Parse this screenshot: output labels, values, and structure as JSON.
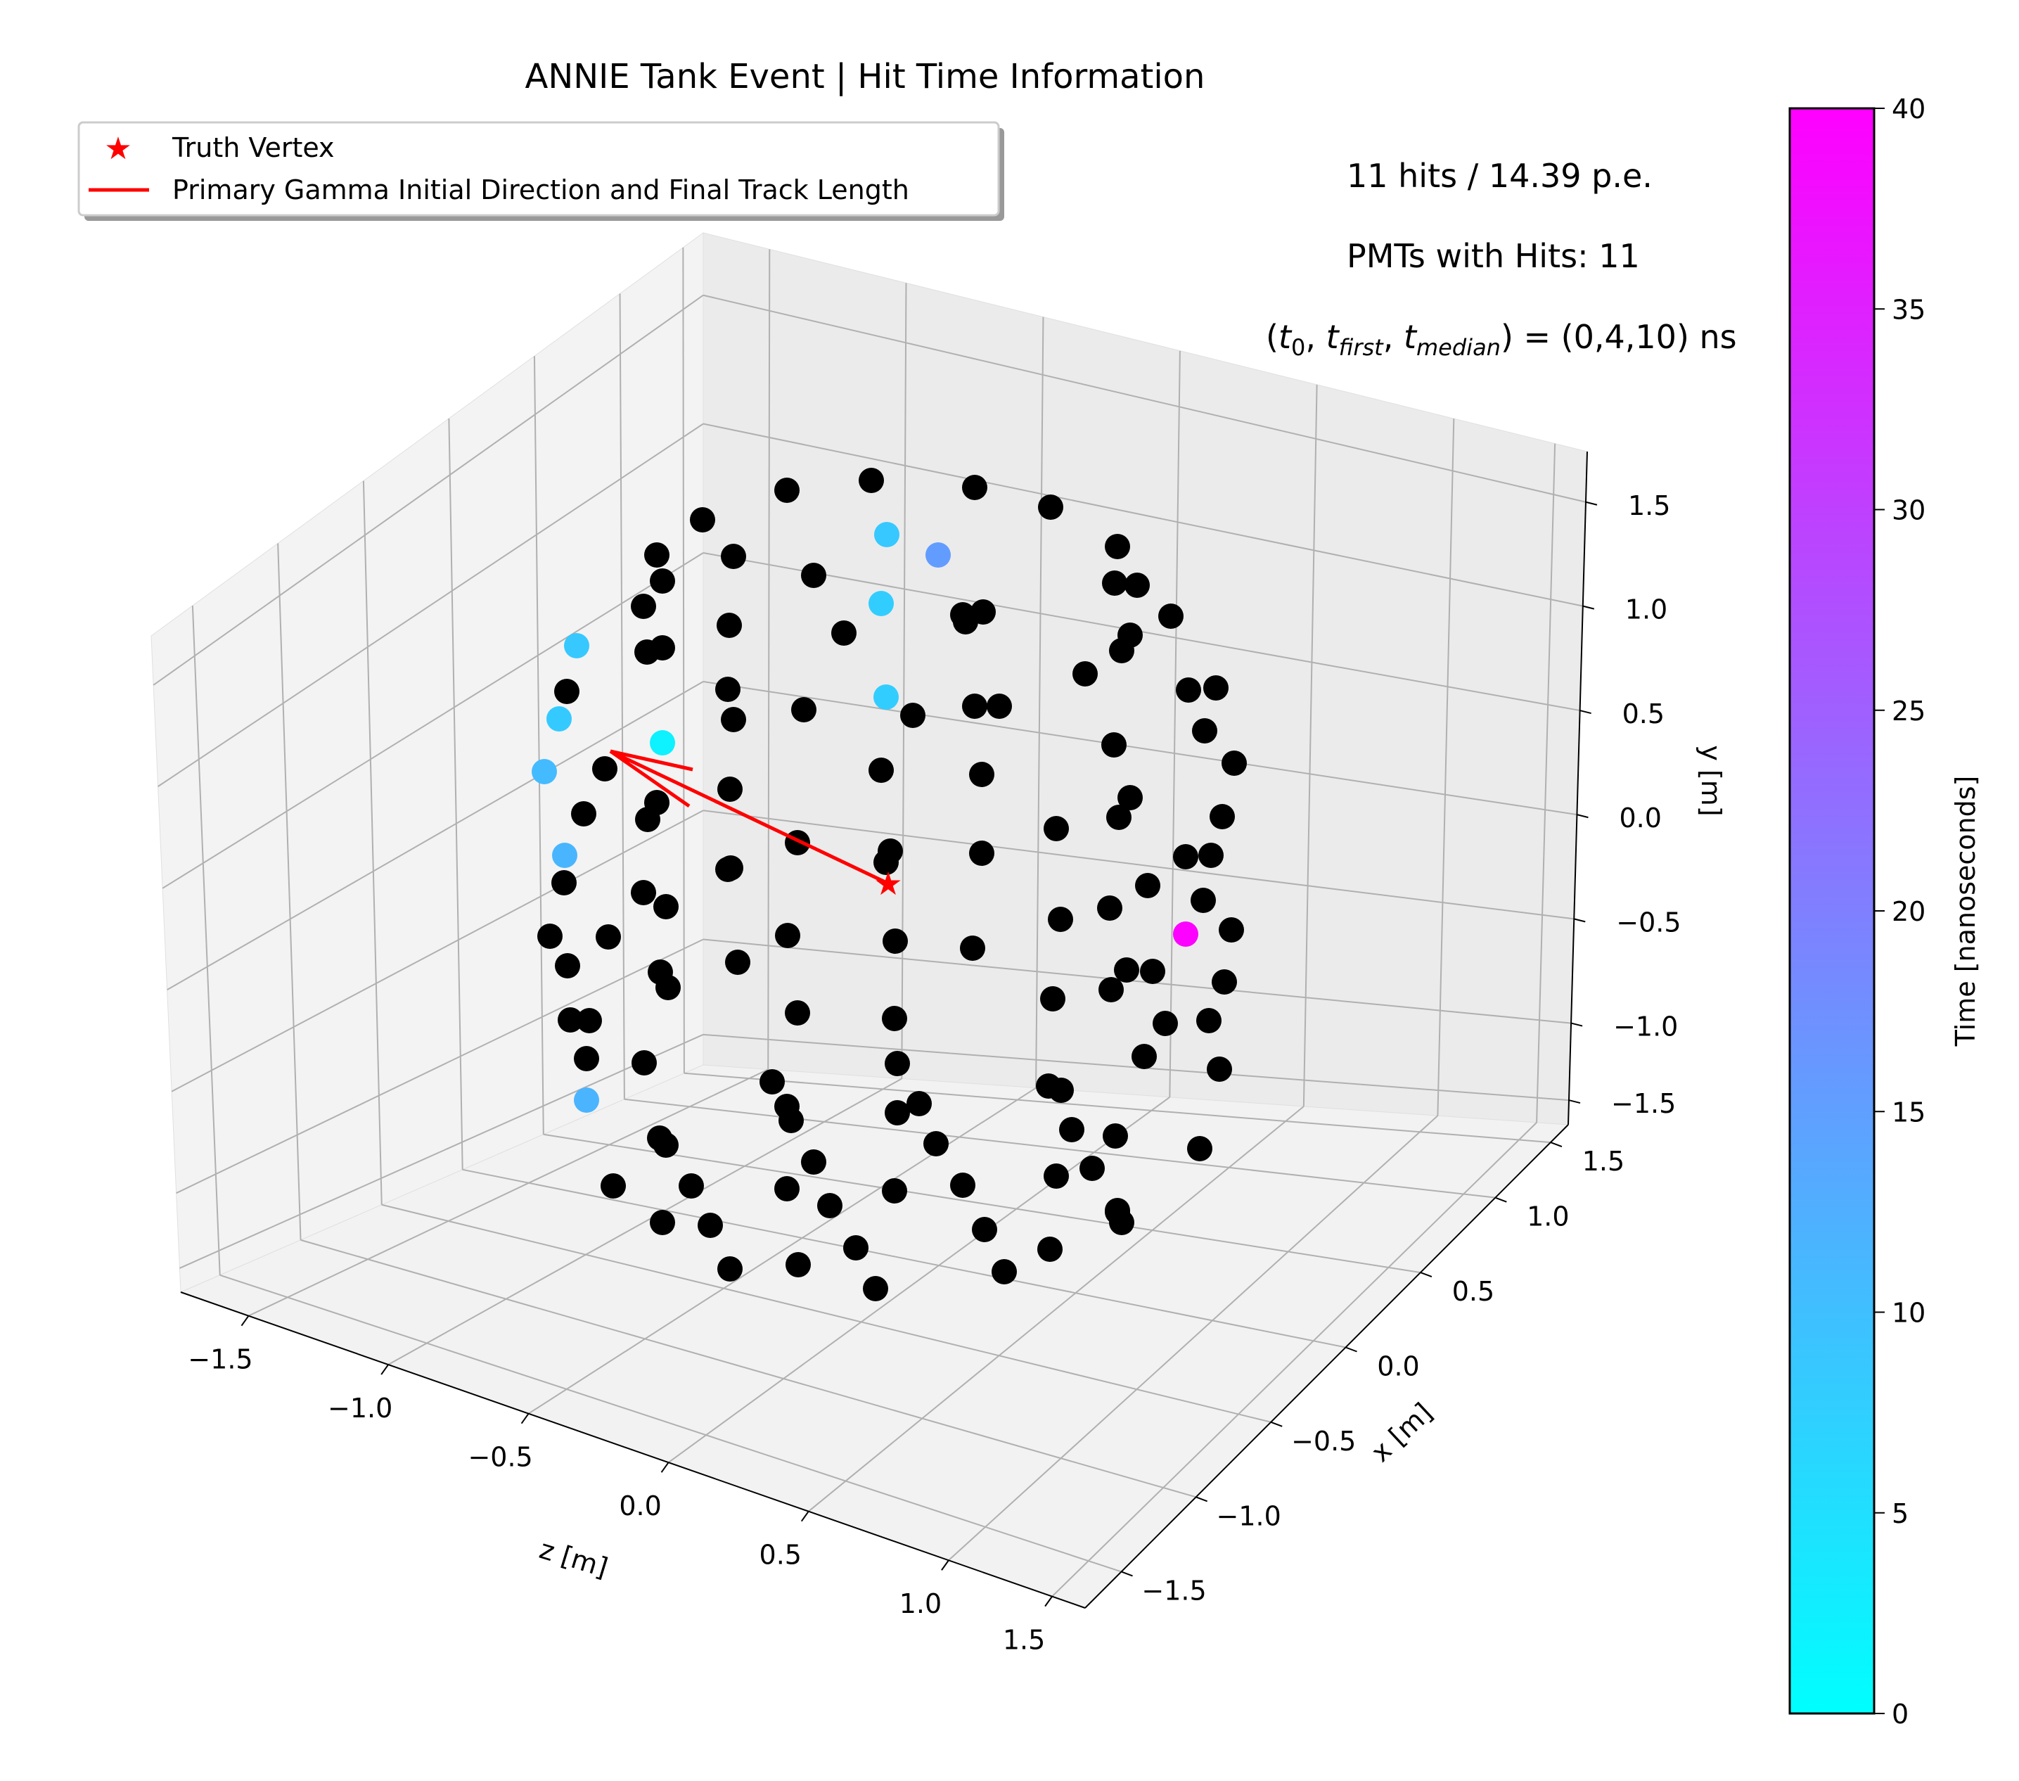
{
  "chart_data": {
    "type": "scatter",
    "title": "ANNIE Tank Event | Hit Time Information",
    "xlabel": "z [m]",
    "xlabel2": "x [m]",
    "ylabel": "y [m]",
    "annotations": {
      "hits": "11 hits / 14.39 p.e.",
      "pmts": "PMTs with Hits: 11",
      "times_prefix": "(",
      "t0": "t",
      "t0_sub": "0",
      "tfirst": "t",
      "tfirst_sub": "first",
      "tmedian": "t",
      "tmedian_sub": "median",
      "times_value": ") = (0,4,10) ns"
    },
    "legend": {
      "placement": "top-left",
      "entries": [
        "Truth Vertex",
        "Primary Gamma Initial Direction and Final Track Length"
      ]
    },
    "z_ticks": [
      "−1.5",
      "−1.0",
      "−0.5",
      "0.0",
      "0.5",
      "1.0",
      "1.5"
    ],
    "x_ticks": [
      "−1.5",
      "−1.0",
      "−0.5",
      "0.0",
      "0.5",
      "1.0",
      "1.5"
    ],
    "y_ticks": [
      "1.5",
      "1.0",
      "0.5",
      "0.0",
      "−0.5",
      "−1.0",
      "−1.5"
    ],
    "colorbar": {
      "label": "Time [nanoseconds]",
      "range": [
        0,
        40
      ],
      "ticks": [
        "0",
        "5",
        "10",
        "15",
        "20",
        "25",
        "30",
        "35",
        "40"
      ],
      "colormap": "cool"
    },
    "colors": {
      "no_hit": "#000000",
      "truth": "#ff0000",
      "grid": "#b0b0b0"
    },
    "truth_vertex": [
      1263,
      1256
    ],
    "direction_end": [
      868,
      1068
    ],
    "hit_pmts": [
      {
        "pt": [
          1261,
          760
        ],
        "time": 8.7
      },
      {
        "pt": [
          1334,
          789
        ],
        "time": 15.5
      },
      {
        "pt": [
          1253,
          858
        ],
        "time": 7.9
      },
      {
        "pt": [
          1260,
          991
        ],
        "time": 7.9
      },
      {
        "pt": [
          820,
          918
        ],
        "time": 8.6
      },
      {
        "pt": [
          795,
          1022
        ],
        "time": 8.3
      },
      {
        "pt": [
          774,
          1097
        ],
        "time": 10.6
      },
      {
        "pt": [
          942,
          1056
        ],
        "time": 2.2
      },
      {
        "pt": [
          803,
          1216
        ],
        "time": 11.6
      },
      {
        "pt": [
          834,
          1564
        ],
        "time": 11.8
      },
      {
        "pt": [
          1686,
          1328
        ],
        "time": 39.6
      }
    ],
    "no_hit_pmts": [
      [
        1119,
        697
      ],
      [
        1239,
        683
      ],
      [
        1386,
        693
      ],
      [
        1494,
        721
      ],
      [
        999,
        739
      ],
      [
        1043,
        791
      ],
      [
        1157,
        818
      ],
      [
        934,
        789
      ],
      [
        942,
        826
      ],
      [
        915,
        862
      ],
      [
        1369,
        874
      ],
      [
        1589,
        777
      ],
      [
        1585,
        829
      ],
      [
        1617,
        832
      ],
      [
        1665,
        876
      ],
      [
        1200,
        900
      ],
      [
        1373,
        884
      ],
      [
        1398,
        870
      ],
      [
        1607,
        903
      ],
      [
        1595,
        925
      ],
      [
        1037,
        889
      ],
      [
        920,
        927
      ],
      [
        942,
        921
      ],
      [
        1543,
        958
      ],
      [
        806,
        983
      ],
      [
        1690,
        981
      ],
      [
        1729,
        978
      ],
      [
        1035,
        980
      ],
      [
        1043,
        1023
      ],
      [
        1143,
        1009
      ],
      [
        1298,
        1017
      ],
      [
        1386,
        1004
      ],
      [
        1421,
        1004
      ],
      [
        1713,
        1039
      ],
      [
        1584,
        1059
      ],
      [
        1755,
        1085
      ],
      [
        860,
        1093
      ],
      [
        1038,
        1122
      ],
      [
        1253,
        1095
      ],
      [
        1396,
        1101
      ],
      [
        1607,
        1134
      ],
      [
        934,
        1141
      ],
      [
        1591,
        1162
      ],
      [
        1738,
        1161
      ],
      [
        1039,
        1234
      ],
      [
        830,
        1157
      ],
      [
        921,
        1165
      ],
      [
        1502,
        1178
      ],
      [
        1134,
        1198
      ],
      [
        1266,
        1210
      ],
      [
        1396,
        1213
      ],
      [
        1686,
        1218
      ],
      [
        1722,
        1216
      ],
      [
        1260,
        1226
      ],
      [
        1035,
        1236
      ],
      [
        1632,
        1259
      ],
      [
        802,
        1255
      ],
      [
        915,
        1269
      ],
      [
        1578,
        1291
      ],
      [
        947,
        1289
      ],
      [
        1711,
        1280
      ],
      [
        1508,
        1307
      ],
      [
        1751,
        1322
      ],
      [
        782,
        1331
      ],
      [
        1120,
        1330
      ],
      [
        1273,
        1338
      ],
      [
        1383,
        1348
      ],
      [
        1639,
        1381
      ],
      [
        865,
        1332
      ],
      [
        807,
        1373
      ],
      [
        1049,
        1368
      ],
      [
        939,
        1382
      ],
      [
        1602,
        1379
      ],
      [
        950,
        1404
      ],
      [
        1741,
        1396
      ],
      [
        1497,
        1420
      ],
      [
        1580,
        1407
      ],
      [
        1657,
        1455
      ],
      [
        811,
        1450
      ],
      [
        838,
        1451
      ],
      [
        1134,
        1440
      ],
      [
        1272,
        1448
      ],
      [
        1719,
        1451
      ],
      [
        834,
        1505
      ],
      [
        1627,
        1502
      ],
      [
        916,
        1511
      ],
      [
        1276,
        1512
      ],
      [
        1734,
        1520
      ],
      [
        1098,
        1538
      ],
      [
        1491,
        1544
      ],
      [
        1509,
        1550
      ],
      [
        1307,
        1569
      ],
      [
        1119,
        1573
      ],
      [
        1125,
        1593
      ],
      [
        1276,
        1582
      ],
      [
        1524,
        1606
      ],
      [
        1586,
        1615
      ],
      [
        938,
        1618
      ],
      [
        947,
        1628
      ],
      [
        1331,
        1626
      ],
      [
        1706,
        1633
      ],
      [
        1157,
        1652
      ],
      [
        1553,
        1661
      ],
      [
        1502,
        1672
      ],
      [
        872,
        1686
      ],
      [
        983,
        1686
      ],
      [
        1119,
        1690
      ],
      [
        1272,
        1693
      ],
      [
        1369,
        1685
      ],
      [
        1589,
        1723
      ],
      [
        1180,
        1714
      ],
      [
        942,
        1738
      ],
      [
        1010,
        1742
      ],
      [
        1589,
        1721
      ],
      [
        1400,
        1748
      ],
      [
        1595,
        1738
      ],
      [
        1217,
        1774
      ],
      [
        1493,
        1776
      ],
      [
        1038,
        1804
      ],
      [
        1135,
        1798
      ],
      [
        1245,
        1832
      ],
      [
        1428,
        1808
      ]
    ]
  }
}
